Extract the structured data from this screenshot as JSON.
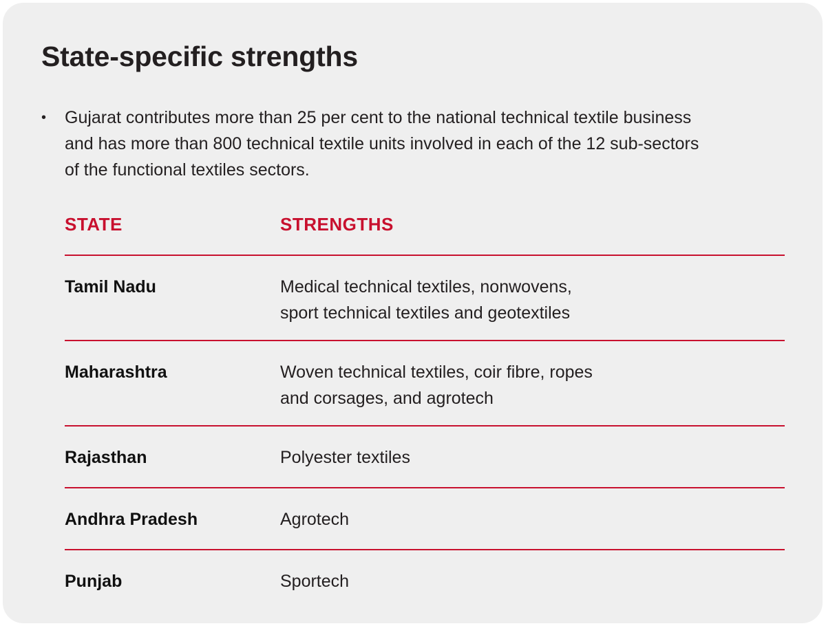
{
  "title": "State-specific strengths",
  "bullet": {
    "symbol": "•",
    "lines": [
      "Gujarat contributes more than 25 per cent to the national technical textile business",
      "and has more than 800 technical textile units involved in each of the 12 sub-sectors",
      "of the functional textiles sectors."
    ]
  },
  "table": {
    "headers": [
      "STATE",
      "STRENGTHS"
    ],
    "rows": [
      {
        "state": "Tamil Nadu",
        "strengths": [
          "Medical technical textiles, nonwovens,",
          "sport technical textiles and geotextiles"
        ]
      },
      {
        "state": "Maharashtra",
        "strengths": [
          "Woven technical textiles, coir fibre, ropes",
          "and corsages, and agrotech"
        ]
      },
      {
        "state": "Rajasthan",
        "strengths": [
          "Polyester textiles"
        ]
      },
      {
        "state": "Andhra Pradesh",
        "strengths": [
          "Agrotech"
        ]
      },
      {
        "state": "Punjab",
        "strengths": [
          "Sportech"
        ]
      }
    ]
  },
  "colors": {
    "accent": "#c8102e",
    "card_background": "#efefef",
    "text": "#231f20"
  }
}
